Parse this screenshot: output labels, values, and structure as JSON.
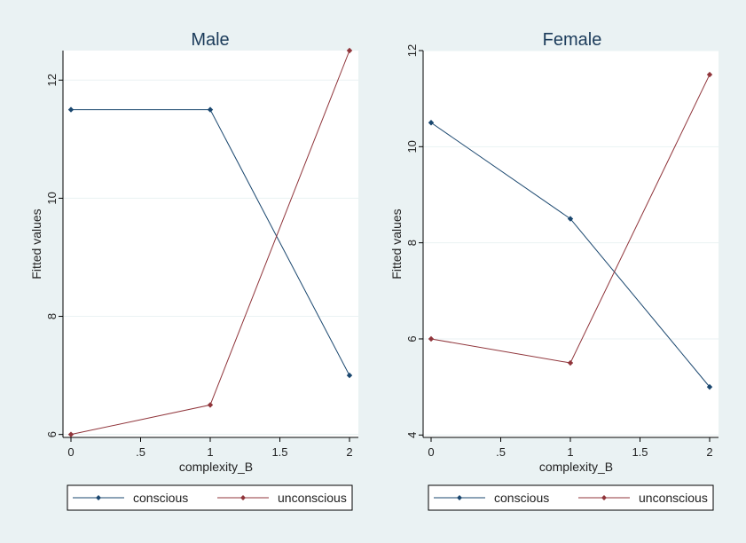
{
  "chart_data": [
    {
      "type": "line",
      "title": "Male",
      "xlabel": "complexity_B",
      "ylabel": "Fitted values",
      "x": [
        0,
        1,
        2
      ],
      "xticks": [
        "0",
        ".5",
        "1",
        "1.5",
        "2"
      ],
      "xtick_values": [
        0,
        0.5,
        1,
        1.5,
        2
      ],
      "yticks": [
        "6",
        "8",
        "10",
        "12"
      ],
      "ytick_values": [
        6,
        8,
        10,
        12
      ],
      "xlim": [
        -0.05,
        2.05
      ],
      "ylim": [
        5.95,
        12.5
      ],
      "grid": true,
      "series": [
        {
          "name": "conscious",
          "values": [
            11.5,
            11.5,
            7.0
          ],
          "color": "#1a476f"
        },
        {
          "name": "unconscious",
          "values": [
            6.0,
            6.5,
            12.5
          ],
          "color": "#90353b"
        }
      ],
      "legend": [
        "conscious",
        "unconscious"
      ],
      "legend_position": "bottom"
    },
    {
      "type": "line",
      "title": "Female",
      "xlabel": "complexity_B",
      "ylabel": "Fitted values",
      "x": [
        0,
        1,
        2
      ],
      "xticks": [
        "0",
        ".5",
        "1",
        "1.5",
        "2"
      ],
      "xtick_values": [
        0,
        0.5,
        1,
        1.5,
        2
      ],
      "yticks": [
        "4",
        "6",
        "8",
        "10",
        "12"
      ],
      "ytick_values": [
        4,
        6,
        8,
        10,
        12
      ],
      "xlim": [
        -0.05,
        2.05
      ],
      "ylim": [
        3.95,
        12
      ],
      "grid": true,
      "series": [
        {
          "name": "conscious",
          "values": [
            10.5,
            8.5,
            5.0
          ],
          "color": "#1a476f"
        },
        {
          "name": "unconscious",
          "values": [
            6.0,
            5.5,
            11.5
          ],
          "color": "#90353b"
        }
      ],
      "legend": [
        "conscious",
        "unconscious"
      ],
      "legend_position": "bottom"
    }
  ]
}
